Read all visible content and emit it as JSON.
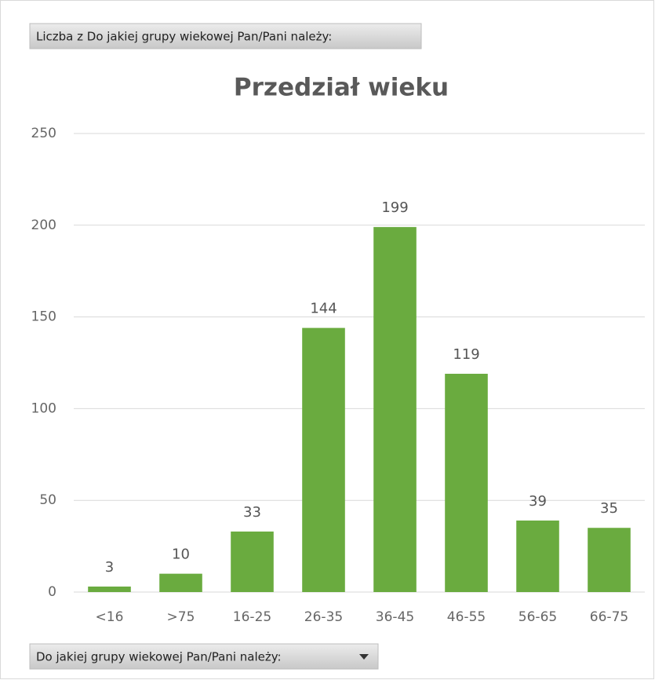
{
  "chart_data": {
    "type": "bar",
    "title": "Przedział wieku",
    "value_field_button": "Liczba z Do jakiej grupy wiekowej Pan/Pani należy:",
    "axis_field_button": "Do jakiej grupy wiekowej Pan/Pani należy:",
    "categories": [
      "<16",
      ">75",
      "16-25",
      "26-35",
      "36-45",
      "46-55",
      "56-65",
      "66-75"
    ],
    "values": [
      3,
      10,
      33,
      144,
      199,
      119,
      39,
      35
    ],
    "color": "#6aab3f",
    "ylim": [
      0,
      250
    ],
    "yticks": [
      0,
      50,
      100,
      150,
      200,
      250
    ],
    "grid": true
  }
}
